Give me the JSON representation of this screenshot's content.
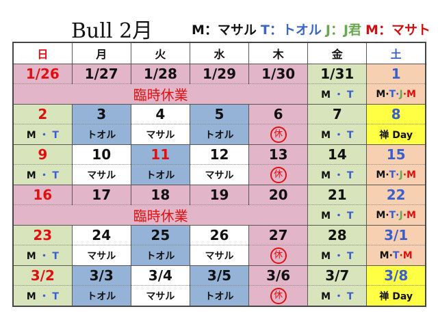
{
  "header": {
    "title": "Bull  2月",
    "legend": [
      {
        "text": "M：マサル",
        "color": "#111111"
      },
      {
        "text": "T：トオル",
        "color": "#3a66c8"
      },
      {
        "text": "J：J君",
        "color": "#6aa84f"
      },
      {
        "text": "M：マサト",
        "color": "#d01010"
      }
    ]
  },
  "colors": {
    "pink": "#e2b6c8",
    "green": "#d8e4bc",
    "peach": "#f7d0b2",
    "blue": "#95b3d7",
    "white": "#ffffff",
    "yellow": "#ffff44",
    "red": "#e01010",
    "sat_blue": "#3a5fcd",
    "black": "#111111",
    "j_green": "#6aa84f"
  },
  "weekdays": [
    {
      "label": "日",
      "color": "red"
    },
    {
      "label": "月",
      "color": "black"
    },
    {
      "label": "火",
      "color": "black"
    },
    {
      "label": "水",
      "color": "black"
    },
    {
      "label": "木",
      "color": "black"
    },
    {
      "label": "金",
      "color": "black"
    },
    {
      "label": "土",
      "color": "sat_blue"
    }
  ],
  "staff_labels": {
    "MT": [
      {
        "t": "M ",
        "c": "black"
      },
      {
        "t": "・",
        "c": "sat_blue"
      },
      {
        "t": " T",
        "c": "sat_blue"
      }
    ],
    "MTJM": [
      {
        "t": "M",
        "c": "black"
      },
      {
        "t": "·",
        "c": "black"
      },
      {
        "t": "T",
        "c": "sat_blue"
      },
      {
        "t": "·",
        "c": "sat_blue"
      },
      {
        "t": "J",
        "c": "j_green"
      },
      {
        "t": "·",
        "c": "red"
      },
      {
        "t": "M",
        "c": "red"
      }
    ],
    "MTM": [
      {
        "t": "M",
        "c": "black"
      },
      {
        "t": "·",
        "c": "black"
      },
      {
        "t": "T",
        "c": "sat_blue"
      },
      {
        "t": "·",
        "c": "red"
      },
      {
        "t": "M",
        "c": "red"
      }
    ],
    "masaru": [
      {
        "t": "マサル",
        "c": "black"
      }
    ],
    "tooru": [
      {
        "t": "トオル",
        "c": "black"
      }
    ],
    "kyu": [
      {
        "t": "休",
        "c": "red",
        "circle": true
      }
    ],
    "zen": [
      {
        "t": "禅 Day",
        "c": "black"
      }
    ]
  },
  "closed_label": "臨時休業",
  "weeks": [
    {
      "closed": true,
      "days": [
        {
          "date": "1/26",
          "color": "red",
          "bg": "pink"
        },
        {
          "date": "1/27",
          "color": "black",
          "bg": "pink"
        },
        {
          "date": "1/28",
          "color": "black",
          "bg": "pink"
        },
        {
          "date": "1/29",
          "color": "black",
          "bg": "pink"
        },
        {
          "date": "1/30",
          "color": "black",
          "bg": "pink"
        },
        {
          "date": "1/31",
          "color": "black",
          "bg": "green",
          "staff": "MT"
        },
        {
          "date": "1",
          "color": "sat_blue",
          "bg": "peach",
          "staff": "MTJM"
        }
      ]
    },
    {
      "closed": false,
      "days": [
        {
          "date": "2",
          "color": "red",
          "bg": "green",
          "staff": "MT"
        },
        {
          "date": "3",
          "color": "black",
          "bg": "blue",
          "staff": "tooru"
        },
        {
          "date": "4",
          "color": "black",
          "bg": "white",
          "staff": "masaru"
        },
        {
          "date": "5",
          "color": "black",
          "bg": "blue",
          "staff": "tooru"
        },
        {
          "date": "6",
          "color": "black",
          "bg": "pink",
          "staff": "kyu"
        },
        {
          "date": "7",
          "color": "black",
          "bg": "green",
          "staff": "MT"
        },
        {
          "date": "8",
          "color": "sat_blue",
          "bg": "yellow",
          "staff": "zen"
        }
      ]
    },
    {
      "closed": false,
      "days": [
        {
          "date": "9",
          "color": "red",
          "bg": "green",
          "staff": "MT"
        },
        {
          "date": "10",
          "color": "black",
          "bg": "white",
          "staff": "masaru"
        },
        {
          "date": "11",
          "color": "red",
          "bg": "blue",
          "staff": "tooru"
        },
        {
          "date": "12",
          "color": "black",
          "bg": "white",
          "staff": "masaru"
        },
        {
          "date": "13",
          "color": "black",
          "bg": "pink",
          "staff": "kyu"
        },
        {
          "date": "14",
          "color": "black",
          "bg": "green",
          "staff": "MT"
        },
        {
          "date": "15",
          "color": "sat_blue",
          "bg": "peach",
          "staff": "MTJM"
        }
      ]
    },
    {
      "closed": true,
      "days": [
        {
          "date": "16",
          "color": "red",
          "bg": "pink"
        },
        {
          "date": "17",
          "color": "black",
          "bg": "pink"
        },
        {
          "date": "18",
          "color": "black",
          "bg": "pink"
        },
        {
          "date": "19",
          "color": "black",
          "bg": "pink"
        },
        {
          "date": "20",
          "color": "black",
          "bg": "pink"
        },
        {
          "date": "21",
          "color": "black",
          "bg": "green",
          "staff": "MT"
        },
        {
          "date": "22",
          "color": "sat_blue",
          "bg": "peach",
          "staff": "MTJM"
        }
      ]
    },
    {
      "closed": false,
      "days": [
        {
          "date": "23",
          "color": "red",
          "bg": "green",
          "staff": "MT"
        },
        {
          "date": "24",
          "color": "black",
          "bg": "white",
          "staff": "masaru"
        },
        {
          "date": "25",
          "color": "black",
          "bg": "blue",
          "staff": "tooru"
        },
        {
          "date": "26",
          "color": "black",
          "bg": "white",
          "staff": "masaru"
        },
        {
          "date": "27",
          "color": "black",
          "bg": "pink",
          "staff": "kyu"
        },
        {
          "date": "28",
          "color": "black",
          "bg": "green",
          "staff": "MT"
        },
        {
          "date": "3/1",
          "color": "sat_blue",
          "bg": "peach",
          "staff": "MTM"
        }
      ]
    },
    {
      "closed": false,
      "days": [
        {
          "date": "3/2",
          "color": "red",
          "bg": "green",
          "staff": "MT"
        },
        {
          "date": "3/3",
          "color": "black",
          "bg": "blue",
          "staff": "tooru"
        },
        {
          "date": "3/4",
          "color": "black",
          "bg": "white",
          "staff": "masaru"
        },
        {
          "date": "3/5",
          "color": "black",
          "bg": "blue",
          "staff": "tooru"
        },
        {
          "date": "3/6",
          "color": "black",
          "bg": "pink",
          "staff": "kyu"
        },
        {
          "date": "3/7",
          "color": "black",
          "bg": "green",
          "staff": "MT"
        },
        {
          "date": "3/8",
          "color": "sat_blue",
          "bg": "yellow",
          "staff": "zen"
        }
      ]
    }
  ]
}
